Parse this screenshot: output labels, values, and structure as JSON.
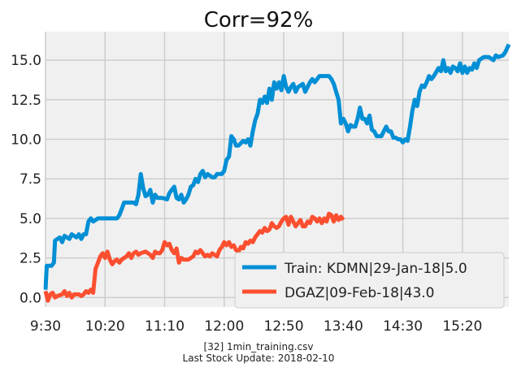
{
  "chart_data": {
    "type": "line",
    "title": "Corr=92%",
    "xlabel": "",
    "ylabel": "",
    "x_tick_labels": [
      "9:30",
      "10:20",
      "11:10",
      "12:00",
      "12:50",
      "13:40",
      "14:30",
      "15:20"
    ],
    "x_tick_minutes": [
      0,
      50,
      100,
      150,
      200,
      250,
      300,
      350
    ],
    "xlim": [
      0,
      389
    ],
    "y_ticks": [
      0.0,
      2.5,
      5.0,
      7.5,
      10.0,
      12.5,
      15.0
    ],
    "y_tick_labels": [
      "0.0",
      "2.5",
      "5.0",
      "7.5",
      "10.0",
      "12.5",
      "15.0"
    ],
    "ylim": [
      -0.6,
      16.8
    ],
    "grid": true,
    "legend_position": "lower-right",
    "series": [
      {
        "name": "Train: KDMN|29-Jan-18|5.0",
        "color": "#008fd5",
        "points": [
          [
            0,
            0.5
          ],
          [
            1,
            2
          ],
          [
            5,
            2
          ],
          [
            7,
            2.2
          ],
          [
            8,
            3.6
          ],
          [
            12,
            3.8
          ],
          [
            14,
            3.5
          ],
          [
            16,
            3.9
          ],
          [
            20,
            3.7
          ],
          [
            22,
            4
          ],
          [
            26,
            3.8
          ],
          [
            28,
            4
          ],
          [
            30,
            3.7
          ],
          [
            32,
            4
          ],
          [
            34,
            4
          ],
          [
            36,
            4.8
          ],
          [
            38,
            5
          ],
          [
            40,
            4.8
          ],
          [
            44,
            5
          ],
          [
            48,
            5
          ],
          [
            52,
            5
          ],
          [
            56,
            5
          ],
          [
            60,
            5
          ],
          [
            62,
            5.2
          ],
          [
            64,
            5.6
          ],
          [
            66,
            6
          ],
          [
            70,
            6
          ],
          [
            74,
            6
          ],
          [
            76,
            5.9
          ],
          [
            78,
            6.5
          ],
          [
            80,
            7.8
          ],
          [
            82,
            6.9
          ],
          [
            84,
            6.4
          ],
          [
            86,
            6.5
          ],
          [
            88,
            6.8
          ],
          [
            90,
            6
          ],
          [
            92,
            6.5
          ],
          [
            94,
            6.3
          ],
          [
            98,
            6.3
          ],
          [
            102,
            6.2
          ],
          [
            104,
            6.6
          ],
          [
            106,
            6.8
          ],
          [
            108,
            7
          ],
          [
            110,
            6.3
          ],
          [
            112,
            6.2
          ],
          [
            114,
            6.5
          ],
          [
            116,
            6
          ],
          [
            118,
            6.2
          ],
          [
            120,
            6.5
          ],
          [
            122,
            7
          ],
          [
            124,
            7.1
          ],
          [
            126,
            7.5
          ],
          [
            128,
            7.3
          ],
          [
            130,
            7.8
          ],
          [
            132,
            8
          ],
          [
            134,
            7.6
          ],
          [
            136,
            7.8
          ],
          [
            140,
            7.6
          ],
          [
            142,
            7.6
          ],
          [
            144,
            7.8
          ],
          [
            148,
            7.8
          ],
          [
            150,
            8
          ],
          [
            152,
            8.7
          ],
          [
            154,
            8.9
          ],
          [
            156,
            10.2
          ],
          [
            158,
            10
          ],
          [
            160,
            9.6
          ],
          [
            162,
            9.6
          ],
          [
            166,
            9.9
          ],
          [
            168,
            9.8
          ],
          [
            170,
            10
          ],
          [
            172,
            9.6
          ],
          [
            174,
            10.5
          ],
          [
            176,
            11.2
          ],
          [
            178,
            11.6
          ],
          [
            180,
            12.5
          ],
          [
            182,
            12.3
          ],
          [
            184,
            12.7
          ],
          [
            186,
            12.3
          ],
          [
            188,
            13.2
          ],
          [
            190,
            12.5
          ],
          [
            192,
            13.6
          ],
          [
            194,
            13.2
          ],
          [
            196,
            13.6
          ],
          [
            198,
            13.1
          ],
          [
            200,
            14
          ],
          [
            202,
            13.3
          ],
          [
            204,
            13
          ],
          [
            206,
            13.3
          ],
          [
            208,
            13.5
          ],
          [
            210,
            13
          ],
          [
            212,
            13.3
          ],
          [
            216,
            13.5
          ],
          [
            218,
            13
          ],
          [
            222,
            13.6
          ],
          [
            224,
            13.8
          ],
          [
            226,
            13.6
          ],
          [
            230,
            14
          ],
          [
            234,
            14
          ],
          [
            238,
            14
          ],
          [
            240,
            13.8
          ],
          [
            242,
            13.5
          ],
          [
            244,
            13
          ],
          [
            246,
            12.5
          ],
          [
            248,
            11
          ],
          [
            250,
            11.3
          ],
          [
            252,
            11
          ],
          [
            254,
            10.5
          ],
          [
            256,
            10.9
          ],
          [
            258,
            10.8
          ],
          [
            260,
            10.8
          ],
          [
            262,
            11.3
          ],
          [
            264,
            12
          ],
          [
            266,
            11.3
          ],
          [
            268,
            11.3
          ],
          [
            270,
            11
          ],
          [
            272,
            11.5
          ],
          [
            274,
            10.6
          ],
          [
            276,
            10.5
          ],
          [
            278,
            10.2
          ],
          [
            280,
            10.2
          ],
          [
            282,
            10.2
          ],
          [
            284,
            10.5
          ],
          [
            286,
            10.8
          ],
          [
            288,
            10.5
          ],
          [
            290,
            10.5
          ],
          [
            292,
            10.1
          ],
          [
            294,
            10.1
          ],
          [
            296,
            10
          ],
          [
            298,
            10
          ],
          [
            300,
            9.8
          ],
          [
            302,
            10
          ],
          [
            304,
            9.9
          ],
          [
            306,
            10.8
          ],
          [
            308,
            11.8
          ],
          [
            310,
            12.5
          ],
          [
            312,
            12.1
          ],
          [
            314,
            13
          ],
          [
            316,
            13.4
          ],
          [
            318,
            13.3
          ],
          [
            320,
            13.6
          ],
          [
            322,
            14
          ],
          [
            324,
            13.8
          ],
          [
            326,
            14
          ],
          [
            330,
            14.5
          ],
          [
            332,
            14.3
          ],
          [
            334,
            15
          ],
          [
            336,
            14.3
          ],
          [
            338,
            14.5
          ],
          [
            340,
            14.2
          ],
          [
            342,
            14.6
          ],
          [
            344,
            14.5
          ],
          [
            346,
            14.3
          ],
          [
            348,
            14.8
          ],
          [
            350,
            14.2
          ],
          [
            352,
            14.6
          ],
          [
            354,
            14.2
          ],
          [
            356,
            14.5
          ],
          [
            358,
            14.4
          ],
          [
            360,
            14.8
          ],
          [
            362,
            14.5
          ],
          [
            364,
            15
          ],
          [
            368,
            15.2
          ],
          [
            372,
            15.2
          ],
          [
            376,
            15
          ],
          [
            378,
            15.3
          ],
          [
            380,
            15.2
          ],
          [
            384,
            15.3
          ],
          [
            386,
            15.5
          ],
          [
            389,
            16
          ]
        ]
      },
      {
        "name": "DGAZ|09-Feb-18|43.0",
        "color": "#fc4f30",
        "points": [
          [
            0,
            0.4
          ],
          [
            2,
            -0.2
          ],
          [
            4,
            0.2
          ],
          [
            6,
            0.3
          ],
          [
            8,
            0
          ],
          [
            10,
            0.1
          ],
          [
            14,
            0.2
          ],
          [
            16,
            0.4
          ],
          [
            18,
            0.1
          ],
          [
            20,
            0.3
          ],
          [
            22,
            0
          ],
          [
            24,
            0.2
          ],
          [
            28,
            0.2
          ],
          [
            30,
            0.1
          ],
          [
            32,
            0.2
          ],
          [
            34,
            0.4
          ],
          [
            36,
            0.3
          ],
          [
            38,
            0.5
          ],
          [
            40,
            0.3
          ],
          [
            42,
            1.8
          ],
          [
            44,
            2.2
          ],
          [
            46,
            2.6
          ],
          [
            48,
            2.8
          ],
          [
            50,
            2.5
          ],
          [
            52,
            2.9
          ],
          [
            54,
            2.4
          ],
          [
            56,
            2.1
          ],
          [
            58,
            2.3
          ],
          [
            60,
            2.4
          ],
          [
            62,
            2.2
          ],
          [
            64,
            2.4
          ],
          [
            66,
            2.5
          ],
          [
            68,
            2.6
          ],
          [
            70,
            2.8
          ],
          [
            72,
            2.5
          ],
          [
            74,
            2.8
          ],
          [
            76,
            2.9
          ],
          [
            78,
            2.7
          ],
          [
            80,
            2.8
          ],
          [
            84,
            2.9
          ],
          [
            88,
            2.7
          ],
          [
            90,
            2.5
          ],
          [
            92,
            2.9
          ],
          [
            94,
            2.8
          ],
          [
            96,
            2.8
          ],
          [
            98,
            3
          ],
          [
            100,
            3.5
          ],
          [
            102,
            3.3
          ],
          [
            104,
            3.4
          ],
          [
            106,
            3
          ],
          [
            108,
            2.8
          ],
          [
            110,
            3.1
          ],
          [
            112,
            2.2
          ],
          [
            114,
            2.5
          ],
          [
            116,
            2.4
          ],
          [
            118,
            2.4
          ],
          [
            120,
            2.4
          ],
          [
            122,
            2.5
          ],
          [
            124,
            2.6
          ],
          [
            126,
            2.9
          ],
          [
            128,
            2.8
          ],
          [
            130,
            3
          ],
          [
            132,
            2.8
          ],
          [
            134,
            2.6
          ],
          [
            136,
            2.7
          ],
          [
            138,
            2.6
          ],
          [
            140,
            2.8
          ],
          [
            144,
            2.6
          ],
          [
            146,
            3
          ],
          [
            148,
            3.2
          ],
          [
            150,
            3.5
          ],
          [
            152,
            3.3
          ],
          [
            154,
            3.5
          ],
          [
            156,
            3.2
          ],
          [
            158,
            3.3
          ],
          [
            160,
            3
          ],
          [
            162,
            2.9
          ],
          [
            164,
            3.2
          ],
          [
            166,
            3.1
          ],
          [
            168,
            3.5
          ],
          [
            170,
            3.4
          ],
          [
            172,
            3.6
          ],
          [
            174,
            3.5
          ],
          [
            176,
            3.8
          ],
          [
            178,
            4
          ],
          [
            180,
            4.2
          ],
          [
            182,
            4.1
          ],
          [
            184,
            4.4
          ],
          [
            186,
            4.2
          ],
          [
            188,
            4.3
          ],
          [
            190,
            4.7
          ],
          [
            192,
            4.5
          ],
          [
            194,
            4.4
          ],
          [
            196,
            4.5
          ],
          [
            198,
            4.8
          ],
          [
            200,
            5
          ],
          [
            202,
            5.1
          ],
          [
            204,
            4.6
          ],
          [
            206,
            5.1
          ],
          [
            208,
            4.8
          ],
          [
            210,
            4.5
          ],
          [
            212,
            4.7
          ],
          [
            214,
            4.9
          ],
          [
            216,
            4.5
          ],
          [
            218,
            4.5
          ],
          [
            220,
            4.8
          ],
          [
            222,
            4.7
          ],
          [
            224,
            5.1
          ],
          [
            226,
            5
          ],
          [
            228,
            4.8
          ],
          [
            230,
            5
          ],
          [
            232,
            4.7
          ],
          [
            234,
            5
          ],
          [
            236,
            4.8
          ],
          [
            238,
            5.3
          ],
          [
            240,
            5.2
          ],
          [
            242,
            4.8
          ],
          [
            244,
            5.2
          ],
          [
            246,
            4.9
          ],
          [
            248,
            5.1
          ],
          [
            250,
            4.9
          ]
        ]
      }
    ],
    "caption": [
      "[32] 1min_training.csv",
      "Last Stock Update: 2018-02-10"
    ]
  }
}
